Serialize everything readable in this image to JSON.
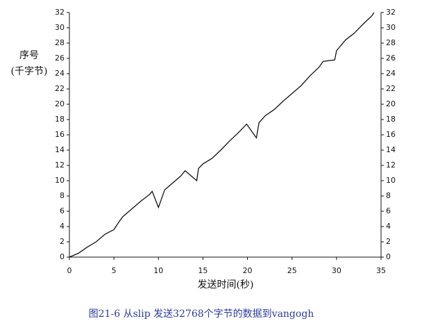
{
  "chart_data": {
    "type": "line",
    "caption": "图21-6  从slip 发送32768个字节的数据到vangogh",
    "xlabel": "发送时间(秒)",
    "ylabel": [
      "序号",
      "(千字节)"
    ],
    "x": [
      0,
      1,
      2,
      3,
      4,
      5,
      5.5,
      6,
      7,
      8,
      9,
      9.3,
      10,
      10.7,
      11.5,
      12.5,
      13,
      14.3,
      14.5,
      15,
      16,
      17,
      18,
      19,
      19.9,
      21,
      21.3,
      22,
      23,
      24,
      25,
      26,
      27,
      28,
      28.5,
      29.8,
      30,
      31,
      32,
      33,
      34,
      34.2
    ],
    "series": [
      {
        "name": "序号",
        "color": "#111111",
        "values": [
          0,
          0.5,
          1.3,
          2.0,
          3.0,
          3.6,
          4.5,
          5.3,
          6.3,
          7.3,
          8.2,
          8.6,
          6.5,
          8.8,
          9.6,
          10.6,
          11.3,
          10.0,
          11.6,
          12.2,
          12.9,
          14.0,
          15.2,
          16.3,
          17.4,
          15.6,
          17.6,
          18.5,
          19.3,
          20.4,
          21.4,
          22.4,
          23.7,
          24.8,
          25.6,
          25.8,
          27.0,
          28.4,
          29.3,
          30.5,
          31.6,
          32.0
        ]
      }
    ],
    "xlim": [
      0,
      35
    ],
    "xticks": [
      0,
      5,
      10,
      15,
      20,
      25,
      30,
      35
    ],
    "ylim": [
      0,
      32
    ],
    "yticks": [
      0,
      2,
      4,
      6,
      8,
      10,
      12,
      14,
      16,
      18,
      20,
      22,
      24,
      26,
      28,
      30,
      32
    ],
    "y2lim": [
      0,
      32
    ],
    "y2ticks": [
      0,
      2,
      4,
      6,
      8,
      10,
      12,
      14,
      16,
      18,
      20,
      22,
      24,
      26,
      28,
      30,
      32
    ],
    "grid": false
  }
}
